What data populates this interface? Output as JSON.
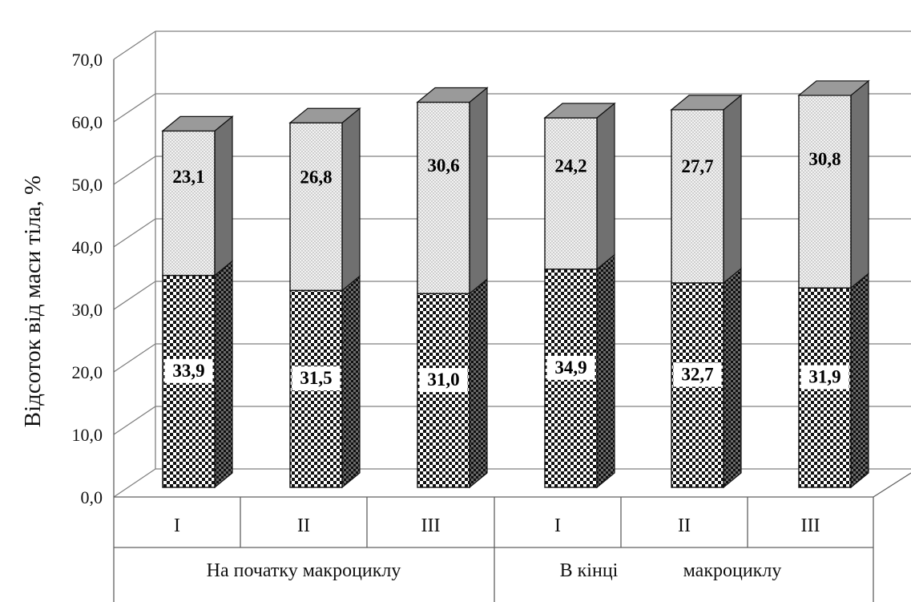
{
  "chart_data": {
    "type": "bar",
    "stacked": true,
    "three_d": true,
    "ylabel": "Відсоток від маси тіла, %",
    "ylim": [
      0,
      70
    ],
    "yticks": [
      "0,0",
      "10,0",
      "20,0",
      "30,0",
      "40,0",
      "50,0",
      "60,0",
      "70,0"
    ],
    "grid": true,
    "categories": [
      "I",
      "II",
      "III",
      "I",
      "II",
      "III"
    ],
    "groups": [
      {
        "label": "На початку макроциклу",
        "categories": [
          "I",
          "II",
          "III"
        ]
      },
      {
        "label_part1": "В кінці",
        "label_part2": "макроциклу",
        "categories": [
          "I",
          "II",
          "III"
        ]
      }
    ],
    "series": [
      {
        "values": [
          33.9,
          31.5,
          31.0,
          34.9,
          32.7,
          31.9
        ],
        "labels": [
          "33,9",
          "31,5",
          "31,0",
          "34,9",
          "32,7",
          "31,9"
        ],
        "pattern": "checkered-dark"
      },
      {
        "values": [
          23.1,
          26.8,
          30.6,
          24.2,
          27.7,
          30.8
        ],
        "labels": [
          "23,1",
          "26,8",
          "30,6",
          "24,2",
          "27,7",
          "30,8"
        ],
        "pattern": "dotted-light"
      }
    ],
    "colors": {
      "side": "#707070",
      "top": "#9a9a9a",
      "grid": "#808080",
      "axis": "#606060"
    }
  }
}
